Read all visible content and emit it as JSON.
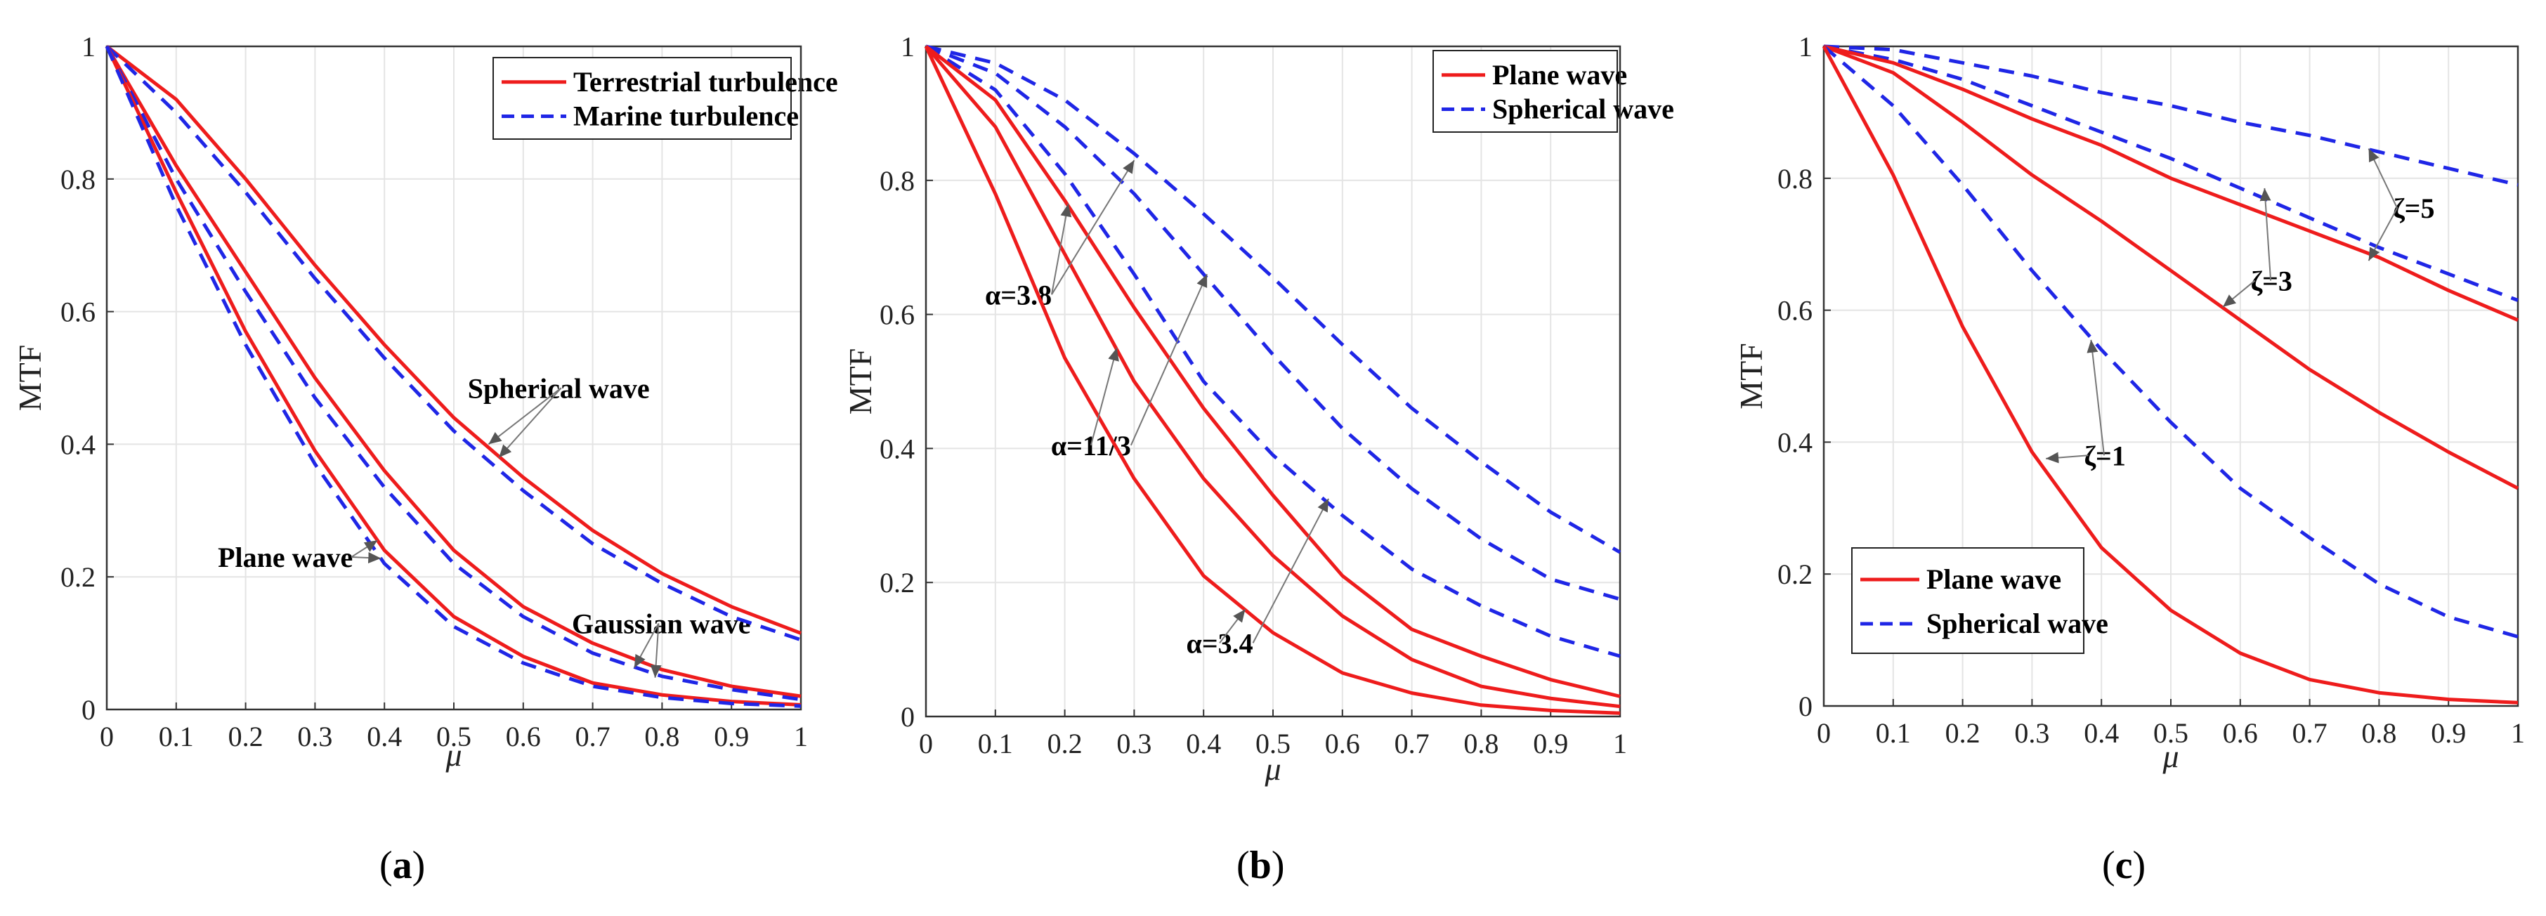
{
  "figure": {
    "panels": [
      "a",
      "b",
      "c"
    ]
  },
  "colors": {
    "terrestrial": "#ee1c1c",
    "marine": "#1f26e6",
    "grid": "#e4e4e4",
    "axis": "#333333",
    "annotation_arrow": "#777777"
  },
  "chart_data": [
    {
      "panel": "a",
      "type": "line",
      "caption": "(a)",
      "caption_letter": "a",
      "xlabel": "μ",
      "ylabel": "MTF",
      "xlim": [
        0,
        1
      ],
      "ylim": [
        0,
        1
      ],
      "xticks": [
        "0",
        "0.1",
        "0.2",
        "0.3",
        "0.4",
        "0.5",
        "0.6",
        "0.7",
        "0.8",
        "0.9",
        "1"
      ],
      "yticks": [
        "0",
        "0.2",
        "0.4",
        "0.6",
        "0.8",
        "1"
      ],
      "grid": true,
      "legend": {
        "position": "top-right",
        "entries": [
          {
            "label": "Terrestrial turbulence",
            "style": "solid",
            "color": "#ee1c1c"
          },
          {
            "label": "Marine turbulence",
            "style": "dashed",
            "color": "#1f26e6"
          }
        ]
      },
      "x": [
        0,
        0.1,
        0.2,
        0.3,
        0.4,
        0.5,
        0.6,
        0.7,
        0.8,
        0.9,
        1.0
      ],
      "series": [
        {
          "name": "Spherical wave - Terrestrial",
          "style": "solid",
          "color": "#ee1c1c",
          "values": [
            1.0,
            0.92,
            0.8,
            0.67,
            0.55,
            0.44,
            0.35,
            0.27,
            0.205,
            0.155,
            0.115
          ]
        },
        {
          "name": "Spherical wave - Marine",
          "style": "dashed",
          "color": "#1f26e6",
          "values": [
            1.0,
            0.9,
            0.78,
            0.65,
            0.53,
            0.42,
            0.33,
            0.25,
            0.19,
            0.14,
            0.105
          ]
        },
        {
          "name": "Plane wave - Terrestrial",
          "style": "solid",
          "color": "#ee1c1c",
          "values": [
            1.0,
            0.82,
            0.66,
            0.5,
            0.36,
            0.24,
            0.155,
            0.1,
            0.06,
            0.035,
            0.02
          ]
        },
        {
          "name": "Plane wave - Marine",
          "style": "dashed",
          "color": "#1f26e6",
          "values": [
            1.0,
            0.8,
            0.63,
            0.47,
            0.335,
            0.22,
            0.14,
            0.085,
            0.05,
            0.03,
            0.015
          ]
        },
        {
          "name": "Gaussian wave - Terrestrial",
          "style": "solid",
          "color": "#ee1c1c",
          "values": [
            1.0,
            0.78,
            0.57,
            0.39,
            0.24,
            0.14,
            0.08,
            0.04,
            0.022,
            0.012,
            0.007
          ]
        },
        {
          "name": "Gaussian wave - Marine",
          "style": "dashed",
          "color": "#1f26e6",
          "values": [
            1.0,
            0.76,
            0.55,
            0.37,
            0.22,
            0.125,
            0.07,
            0.035,
            0.018,
            0.009,
            0.005
          ]
        }
      ],
      "annotations": [
        {
          "text": "Spherical wave",
          "tx": 0.52,
          "ty": 0.47,
          "arrows": [
            [
              0.55,
              0.4
            ],
            [
              0.565,
              0.38
            ]
          ]
        },
        {
          "text": "Plane wave",
          "tx": 0.16,
          "ty": 0.215,
          "arrows": [
            [
              0.39,
              0.255
            ],
            [
              0.395,
              0.228
            ]
          ]
        },
        {
          "text": "Gaussian wave",
          "tx": 0.67,
          "ty": 0.115,
          "arrows": [
            [
              0.76,
              0.063
            ],
            [
              0.79,
              0.048
            ]
          ]
        }
      ]
    },
    {
      "panel": "b",
      "type": "line",
      "caption": "(b)",
      "caption_letter": "b",
      "xlabel": "μ",
      "ylabel": "MTF",
      "xlim": [
        0,
        1
      ],
      "ylim": [
        0,
        1
      ],
      "xticks": [
        "0",
        "0.1",
        "0.2",
        "0.3",
        "0.4",
        "0.5",
        "0.6",
        "0.7",
        "0.8",
        "0.9",
        "1"
      ],
      "yticks": [
        "0",
        "0.2",
        "0.4",
        "0.6",
        "0.8",
        "1"
      ],
      "grid": true,
      "legend": {
        "position": "top-right",
        "entries": [
          {
            "label": "Plane wave",
            "style": "solid",
            "color": "#ee1c1c"
          },
          {
            "label": "Spherical wave",
            "style": "dashed",
            "color": "#1f26e6"
          }
        ]
      },
      "x": [
        0,
        0.1,
        0.2,
        0.3,
        0.4,
        0.5,
        0.6,
        0.7,
        0.8,
        0.9,
        1.0
      ],
      "series": [
        {
          "name": "Spherical wave α=3.8",
          "style": "dashed",
          "color": "#1f26e6",
          "values": [
            1.0,
            0.975,
            0.92,
            0.84,
            0.75,
            0.655,
            0.555,
            0.46,
            0.38,
            0.305,
            0.245
          ]
        },
        {
          "name": "Spherical wave α=11/3",
          "style": "dashed",
          "color": "#1f26e6",
          "values": [
            1.0,
            0.96,
            0.88,
            0.78,
            0.66,
            0.54,
            0.43,
            0.34,
            0.265,
            0.205,
            0.175
          ]
        },
        {
          "name": "Spherical wave α=3.4",
          "style": "dashed",
          "color": "#1f26e6",
          "values": [
            1.0,
            0.935,
            0.81,
            0.66,
            0.5,
            0.39,
            0.3,
            0.22,
            0.165,
            0.12,
            0.09
          ]
        },
        {
          "name": "Plane wave α=3.8",
          "style": "solid",
          "color": "#ee1c1c",
          "values": [
            1.0,
            0.92,
            0.77,
            0.61,
            0.46,
            0.33,
            0.21,
            0.13,
            0.09,
            0.055,
            0.03
          ]
        },
        {
          "name": "Plane wave α=11/3",
          "style": "solid",
          "color": "#ee1c1c",
          "values": [
            1.0,
            0.88,
            0.69,
            0.5,
            0.355,
            0.24,
            0.15,
            0.085,
            0.045,
            0.027,
            0.015
          ]
        },
        {
          "name": "Plane wave α=3.4",
          "style": "solid",
          "color": "#ee1c1c",
          "values": [
            1.0,
            0.78,
            0.535,
            0.355,
            0.21,
            0.125,
            0.065,
            0.035,
            0.017,
            0.009,
            0.005
          ]
        }
      ],
      "annotations": [
        {
          "text": "α=3.8",
          "tx": 0.085,
          "ty": 0.615,
          "arrows": [
            [
              0.205,
              0.765
            ],
            [
              0.3,
              0.83
            ]
          ]
        },
        {
          "text": "α=11/3",
          "tx": 0.18,
          "ty": 0.39,
          "arrows": [
            [
              0.275,
              0.55
            ],
            [
              0.405,
              0.66
            ]
          ]
        },
        {
          "text": "α=3.4",
          "tx": 0.375,
          "ty": 0.095,
          "arrows": [
            [
              0.46,
              0.16
            ],
            [
              0.58,
              0.325
            ]
          ]
        }
      ]
    },
    {
      "panel": "c",
      "type": "line",
      "caption": "(c)",
      "caption_letter": "c",
      "xlabel": "μ",
      "ylabel": "MTF",
      "xlim": [
        0,
        1
      ],
      "ylim": [
        0,
        1
      ],
      "xticks": [
        "0",
        "0.1",
        "0.2",
        "0.3",
        "0.4",
        "0.5",
        "0.6",
        "0.7",
        "0.8",
        "0.9",
        "1"
      ],
      "yticks": [
        "0",
        "0.2",
        "0.4",
        "0.6",
        "0.8",
        "1"
      ],
      "grid": true,
      "legend": {
        "position": "bottom-left",
        "entries": [
          {
            "label": "Plane wave",
            "style": "solid",
            "color": "#ee1c1c"
          },
          {
            "label": "Spherical wave",
            "style": "dashed",
            "color": "#1f26e6"
          }
        ]
      },
      "x": [
        0,
        0.1,
        0.2,
        0.3,
        0.4,
        0.5,
        0.6,
        0.7,
        0.8,
        0.9,
        1.0
      ],
      "series": [
        {
          "name": "Spherical wave ζ=5",
          "style": "dashed",
          "color": "#1f26e6",
          "values": [
            1.0,
            0.995,
            0.975,
            0.955,
            0.93,
            0.91,
            0.885,
            0.865,
            0.84,
            0.815,
            0.79
          ]
        },
        {
          "name": "Spherical wave ζ=3",
          "style": "dashed",
          "color": "#1f26e6",
          "values": [
            1.0,
            0.98,
            0.95,
            0.91,
            0.87,
            0.83,
            0.785,
            0.74,
            0.695,
            0.655,
            0.615
          ]
        },
        {
          "name": "Plane wave ζ=5",
          "style": "solid",
          "color": "#ee1c1c",
          "values": [
            1.0,
            0.975,
            0.935,
            0.89,
            0.85,
            0.8,
            0.76,
            0.72,
            0.68,
            0.63,
            0.585
          ]
        },
        {
          "name": "Plane wave ζ=3",
          "style": "solid",
          "color": "#ee1c1c",
          "values": [
            1.0,
            0.96,
            0.885,
            0.805,
            0.735,
            0.66,
            0.585,
            0.51,
            0.445,
            0.385,
            0.33
          ]
        },
        {
          "name": "Spherical wave ζ=1",
          "style": "dashed",
          "color": "#1f26e6",
          "values": [
            1.0,
            0.91,
            0.79,
            0.66,
            0.54,
            0.43,
            0.33,
            0.255,
            0.185,
            0.135,
            0.105
          ]
        },
        {
          "name": "Plane wave ζ=1",
          "style": "solid",
          "color": "#ee1c1c",
          "values": [
            1.0,
            0.805,
            0.575,
            0.385,
            0.24,
            0.145,
            0.08,
            0.04,
            0.02,
            0.01,
            0.005
          ]
        }
      ],
      "annotations": [
        {
          "text": "ζ=5",
          "tx": 0.82,
          "ty": 0.74,
          "arrows": [
            [
              0.785,
              0.845
            ],
            [
              0.785,
              0.675
            ]
          ]
        },
        {
          "text": "ζ=3",
          "tx": 0.615,
          "ty": 0.63,
          "arrows": [
            [
              0.635,
              0.785
            ],
            [
              0.575,
              0.605
            ]
          ]
        },
        {
          "text": "ζ=1",
          "tx": 0.375,
          "ty": 0.365,
          "arrows": [
            [
              0.385,
              0.555
            ],
            [
              0.32,
              0.375
            ]
          ]
        }
      ]
    }
  ]
}
